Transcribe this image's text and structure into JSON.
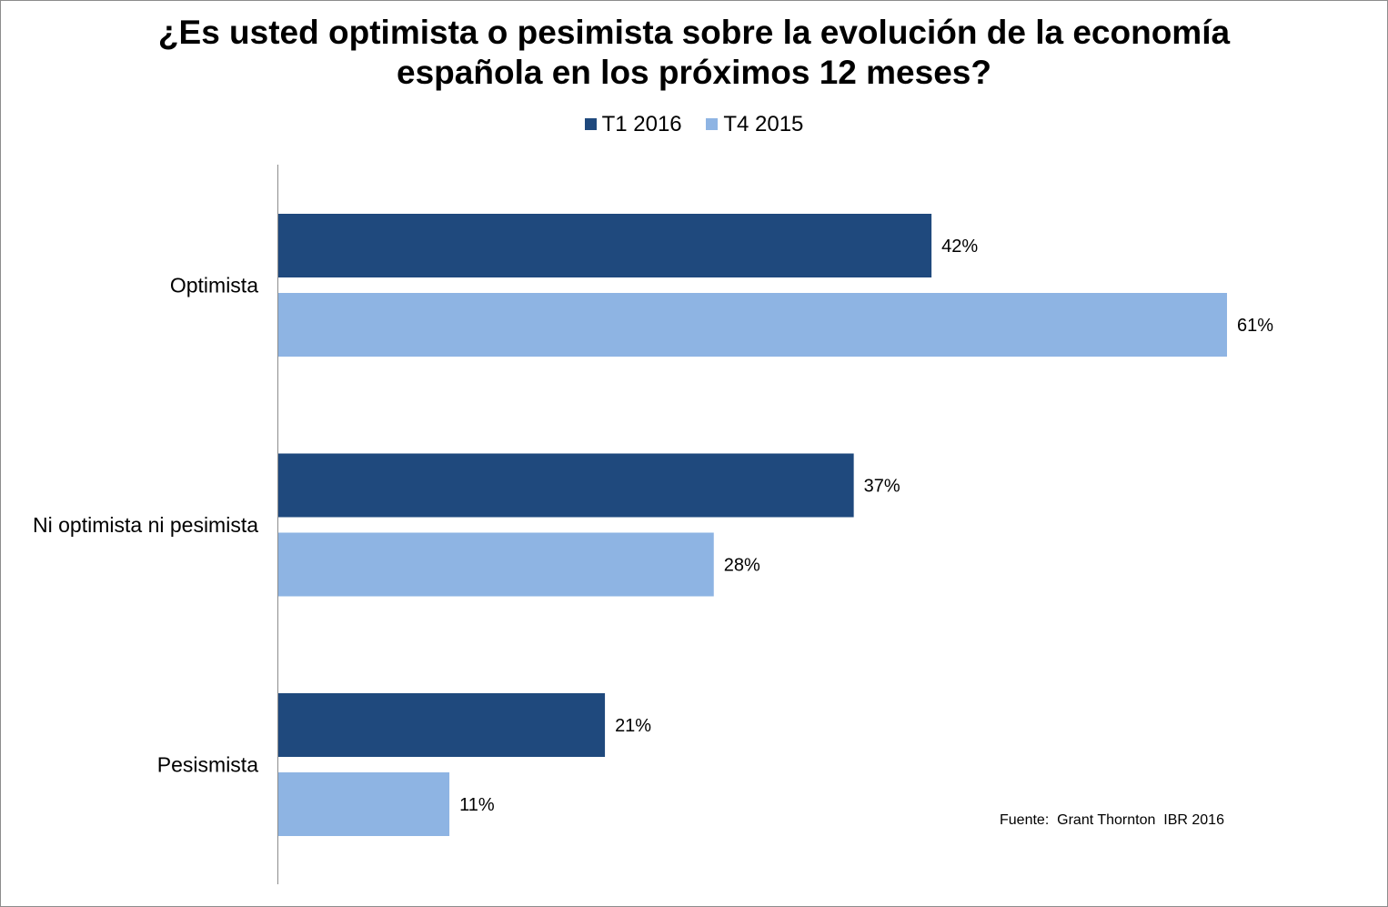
{
  "chart_data": {
    "type": "bar",
    "orientation": "horizontal",
    "title_line1": "¿Es usted optimista o pesimista sobre la evolución de la economía",
    "title_line2": "española en los próximos 12 meses?",
    "categories": [
      "Optimista",
      "Ni optimista ni pesimista",
      "Pesismista"
    ],
    "series": [
      {
        "name": "T1 2016",
        "color": "#1F497D",
        "values": [
          42,
          37,
          21
        ],
        "labels": [
          "42%",
          "37%",
          "21%"
        ]
      },
      {
        "name": "T4 2015",
        "color": "#8EB4E3",
        "values": [
          61,
          28,
          11
        ],
        "labels": [
          "61%",
          "28%",
          "11%"
        ]
      }
    ],
    "value_unit": "%",
    "xlim": [
      0,
      61
    ],
    "grid": false,
    "legend_position": "top"
  },
  "source_note": "Fuente:  Grant Thornton  IBR 2016"
}
